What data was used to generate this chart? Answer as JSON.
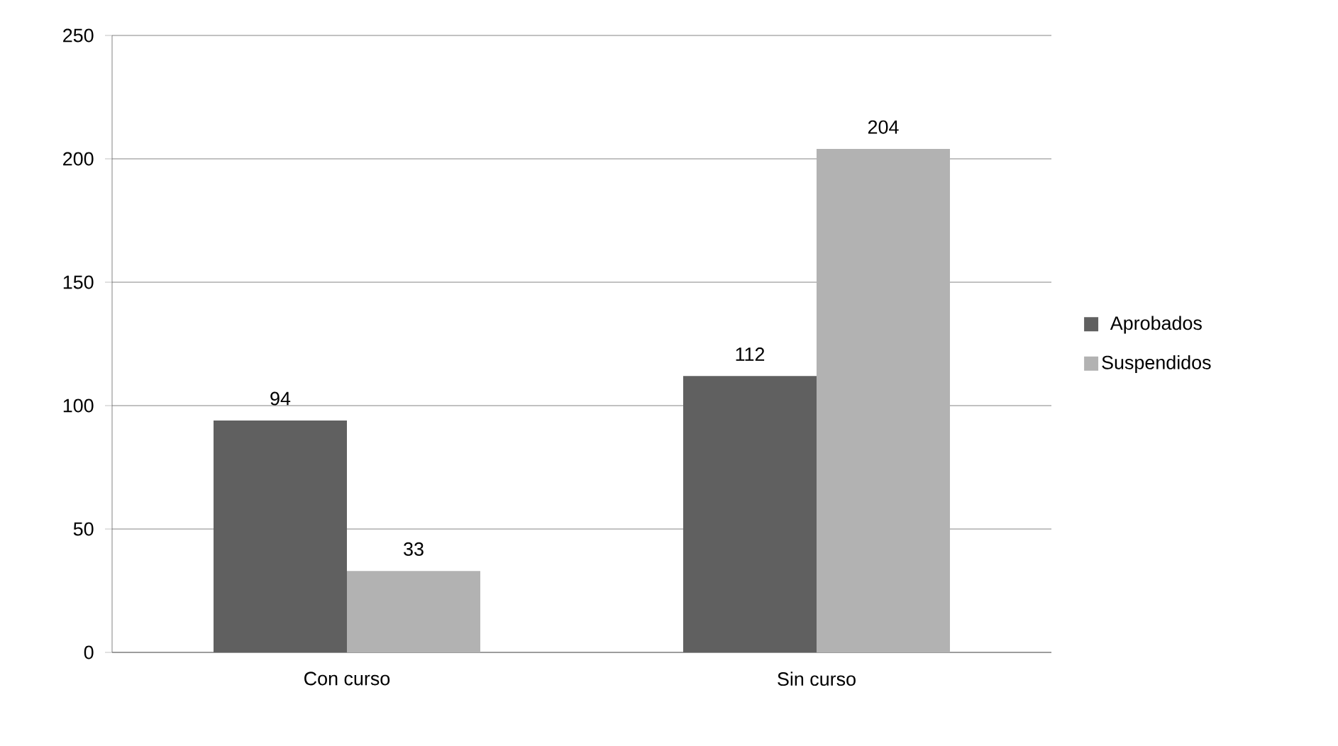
{
  "chart_data": {
    "type": "bar",
    "categories": [
      "Con curso",
      "Sin curso"
    ],
    "series": [
      {
        "name": "Aprobados",
        "color": "#606060",
        "values": [
          94,
          112
        ]
      },
      {
        "name": "Suspendidos",
        "color": "#b2b2b2",
        "values": [
          33,
          204
        ]
      }
    ],
    "ylim": [
      0,
      250
    ],
    "yticks": [
      0,
      50,
      100,
      150,
      200,
      250
    ],
    "grid": "y",
    "legend": "right",
    "data_labels": true
  }
}
